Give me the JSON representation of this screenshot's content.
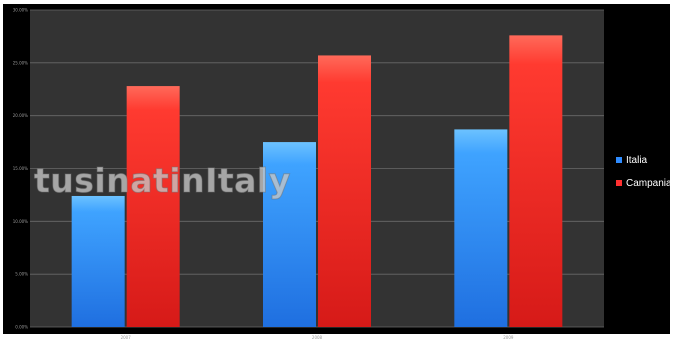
{
  "chart_data": {
    "type": "bar",
    "categories": [
      "2007",
      "2008",
      "2009"
    ],
    "series": [
      {
        "name": "Italia",
        "values": [
          12.4,
          17.5,
          18.7
        ],
        "color": "#2f8cff"
      },
      {
        "name": "Campania",
        "values": [
          22.8,
          25.7,
          27.6
        ],
        "color": "#ff3030"
      }
    ],
    "ylim": [
      0,
      30
    ],
    "yticks": [
      0,
      5,
      10,
      15,
      20,
      25,
      30
    ],
    "ytick_labels": [
      "0.00%",
      "5.00%",
      "10.00%",
      "15.00%",
      "20.00%",
      "25.00%",
      "30.00%"
    ],
    "grid": true,
    "legend_position": "right",
    "background_color": "#333333"
  },
  "watermark": "tusinatinItaly"
}
